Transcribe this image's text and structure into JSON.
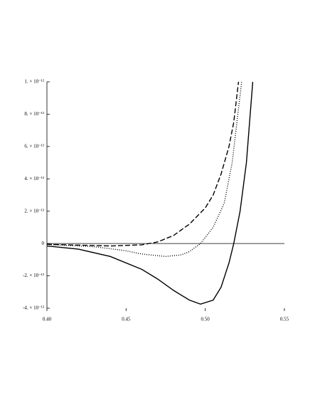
{
  "chart_data": {
    "type": "line",
    "xlim": [
      0.4,
      0.55
    ],
    "ylim": [
      -4e-13,
      1e-12
    ],
    "xticks": [
      {
        "value": 0.4,
        "label": "0.40"
      },
      {
        "value": 0.45,
        "label": "0.45"
      },
      {
        "value": 0.5,
        "label": "0.50"
      },
      {
        "value": 0.55,
        "label": "0.55"
      }
    ],
    "yticks": [
      {
        "value": -4e-13,
        "label": "-4. × 10⁻¹³"
      },
      {
        "value": -2e-13,
        "label": "-2. × 10⁻¹³"
      },
      0,
      {
        "value": 2e-13,
        "label": "2. × 10⁻¹³"
      },
      {
        "value": 4e-13,
        "label": "4. × 10⁻¹³"
      },
      {
        "value": 6e-13,
        "label": "6. × 10⁻¹³"
      },
      {
        "value": 8e-13,
        "label": "8. × 10⁻¹³"
      },
      {
        "value": 1e-12,
        "label": "1. × 10⁻¹²"
      }
    ],
    "series": [
      {
        "color": "#000000",
        "dash": "solid",
        "x": [
          0.4,
          0.42,
          0.44,
          0.46,
          0.47,
          0.48,
          0.49,
          0.497,
          0.505,
          0.51,
          0.515,
          0.518,
          0.522,
          0.526,
          0.53
        ],
        "values": [
          -1.5e-14,
          -3.5e-14,
          -8e-14,
          -1.6e-13,
          -2.2e-13,
          -2.9e-13,
          -3.5e-13,
          -3.75e-13,
          -3.5e-13,
          -2.7e-13,
          -1.2e-13,
          0,
          2e-13,
          5e-13,
          1e-12
        ]
      },
      {
        "color": "#000000",
        "dash": "dotted",
        "x": [
          0.4,
          0.43,
          0.45,
          0.46,
          0.475,
          0.485,
          0.49,
          0.497,
          0.505,
          0.512,
          0.517,
          0.52,
          0.523
        ],
        "values": [
          -5e-15,
          -2e-14,
          -4.5e-14,
          -6.5e-14,
          -8e-14,
          -7e-14,
          -5e-14,
          0,
          1e-13,
          2.5e-13,
          5e-13,
          7.5e-13,
          1e-12
        ]
      },
      {
        "color": "#000000",
        "dash": "dashed",
        "x": [
          0.4,
          0.42,
          0.44,
          0.46,
          0.47,
          0.48,
          0.49,
          0.5,
          0.505,
          0.51,
          0.515,
          0.518,
          0.521
        ],
        "values": [
          -5e-15,
          -1e-14,
          -1.5e-14,
          -8e-15,
          1e-14,
          5e-14,
          1.2e-13,
          2.2e-13,
          3e-13,
          4.3e-13,
          6e-13,
          7.5e-13,
          1e-12
        ]
      }
    ]
  }
}
